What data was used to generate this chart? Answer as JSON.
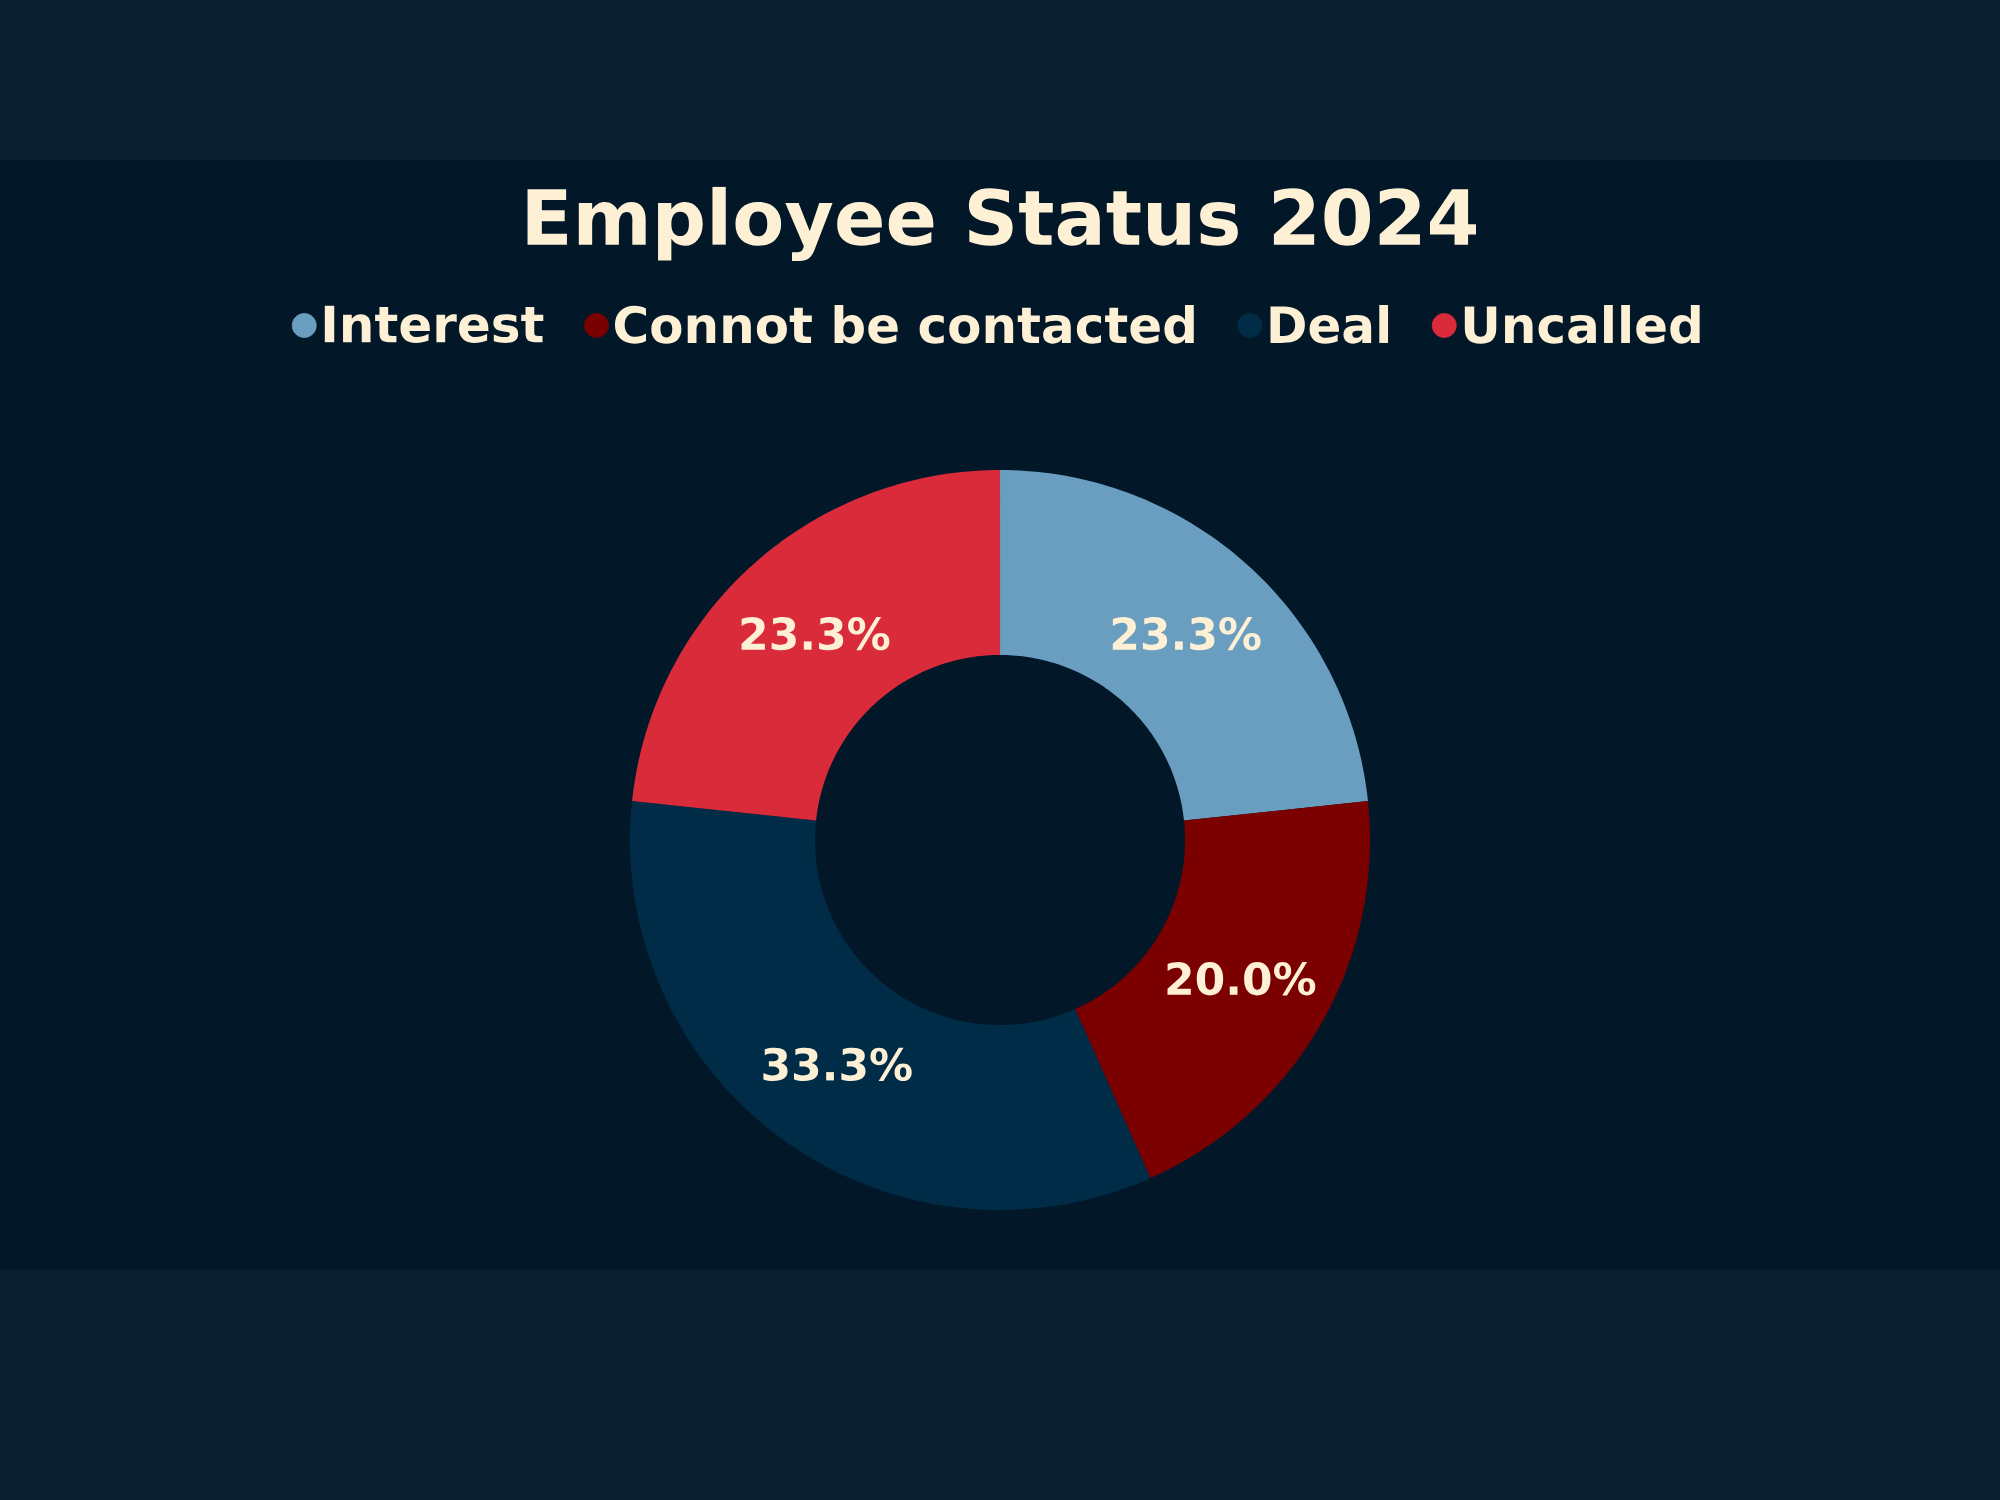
{
  "chart_data": {
    "type": "donut",
    "title": "Employee Status 2024",
    "categories": [
      "Interest",
      "Connot be contacted",
      "Deal",
      "Uncalled"
    ],
    "values": [
      23.3,
      20.0,
      33.3,
      23.3
    ],
    "colors": [
      "#6a9ec0",
      "#7b0000",
      "#002c48",
      "#d92b3a"
    ],
    "value_labels": [
      "23.3%",
      "20.0%",
      "33.3%",
      "23.3%"
    ],
    "legend": "top"
  }
}
